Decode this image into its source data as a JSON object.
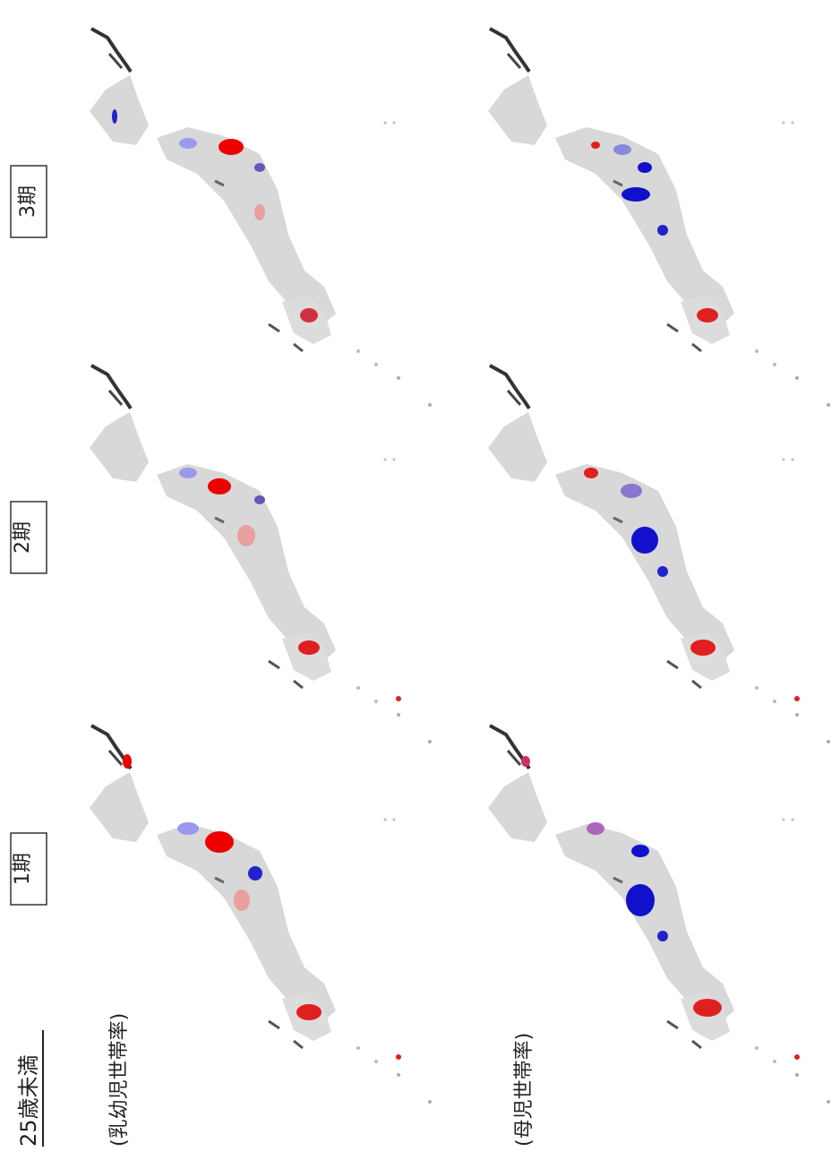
{
  "header": {
    "title": "25歳未満"
  },
  "rows": [
    "(乳幼児世帯率)",
    "(母児世帯率)"
  ],
  "columns": [
    "1期",
    "2期",
    "3期"
  ]
}
